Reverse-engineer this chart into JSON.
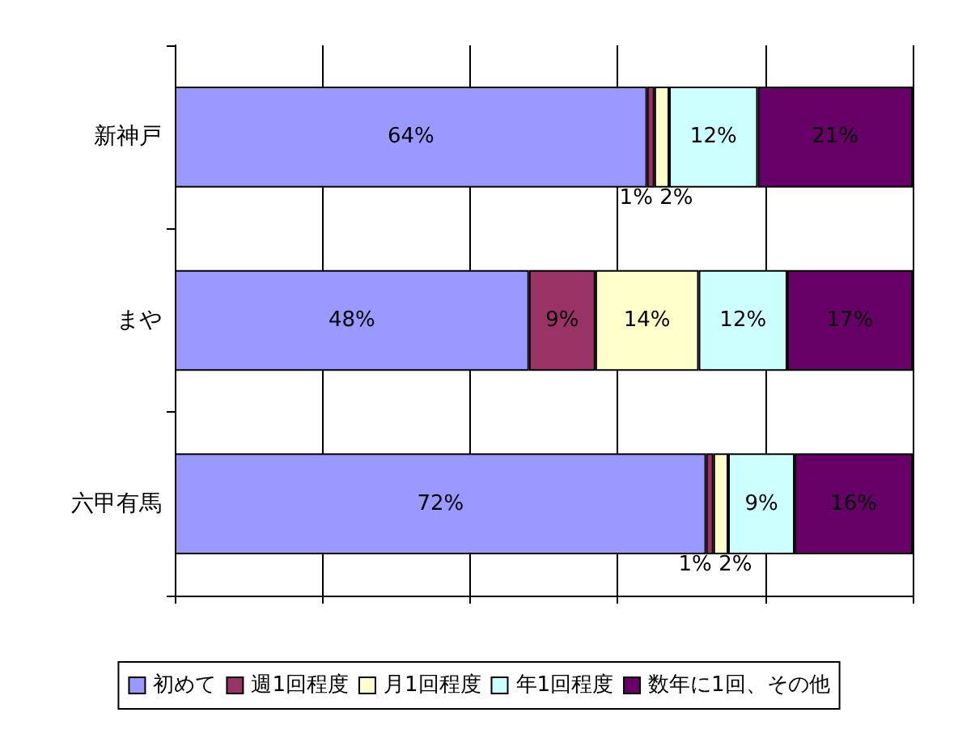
{
  "chart_data": {
    "type": "bar",
    "orientation": "horizontal",
    "stacked": true,
    "categories": [
      "新神戸",
      "まや",
      "六甲有馬"
    ],
    "series": [
      {
        "name": "初めて",
        "color": "#9999ff",
        "values": [
          64,
          48,
          72
        ],
        "value_labels": [
          "64%",
          "48%",
          "72%"
        ]
      },
      {
        "name": "週1回程度",
        "color": "#993366",
        "values": [
          1,
          9,
          1
        ],
        "value_labels": [
          "1%",
          "9%",
          "1%"
        ]
      },
      {
        "name": "月1回程度",
        "color": "#ffffcc",
        "values": [
          2,
          14,
          2
        ],
        "value_labels": [
          "2%",
          "14%",
          "2%"
        ]
      },
      {
        "name": "年1回程度",
        "color": "#ccffff",
        "values": [
          12,
          12,
          9
        ],
        "value_labels": [
          "12%",
          "12%",
          "9%"
        ]
      },
      {
        "name": "数年に1回、その他",
        "color": "#660066",
        "values": [
          21,
          17,
          16
        ],
        "value_labels": [
          "21%",
          "17%",
          "16%"
        ]
      }
    ],
    "xlim": [
      0,
      100
    ],
    "xticks": [
      {
        "value": 0,
        "label": null
      },
      {
        "value": 20,
        "label": null
      },
      {
        "value": 40,
        "label": null
      },
      {
        "value": 60,
        "label": null
      },
      {
        "value": 80,
        "label": null
      },
      {
        "value": 100,
        "label": null
      }
    ],
    "tick_labels": "y",
    "grid": "x",
    "legend": "bottom"
  }
}
